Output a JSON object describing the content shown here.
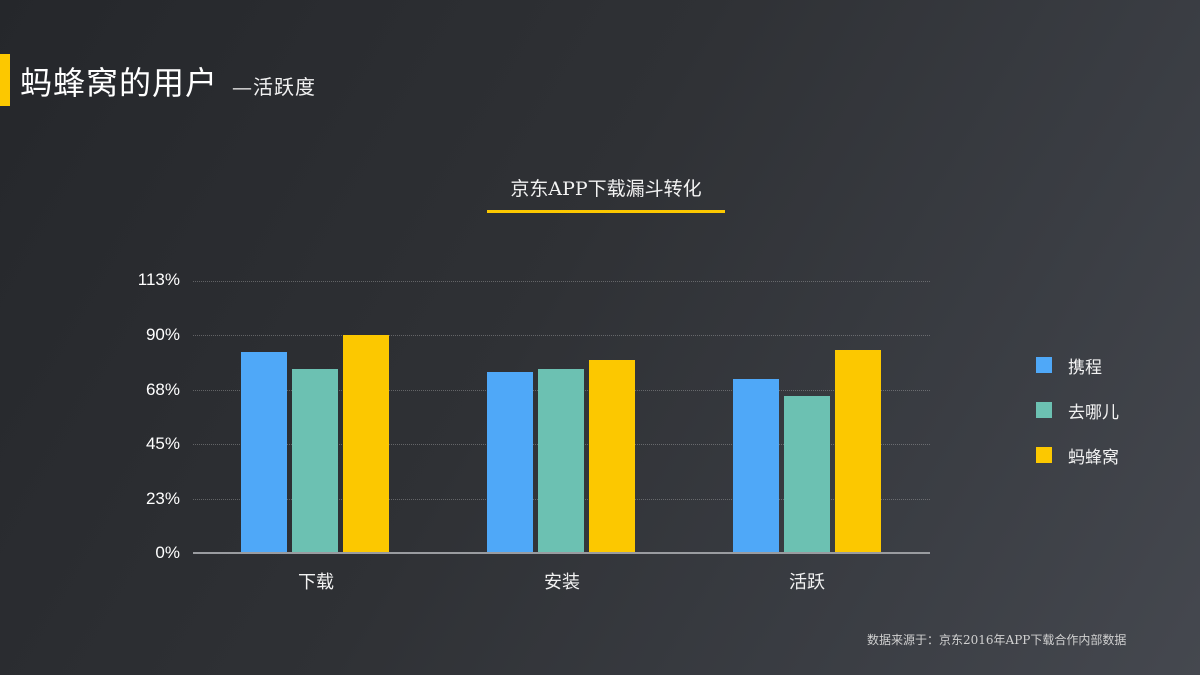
{
  "header": {
    "title": "蚂蜂窝的用户",
    "subtitle": "—活跃度",
    "accent_color": "#fcc800"
  },
  "chart_data": {
    "type": "bar",
    "title": "京东APP下载漏斗转化",
    "xlabel": "",
    "ylabel": "",
    "categories": [
      "下载",
      "安装",
      "活跃"
    ],
    "series": [
      {
        "name": "携程",
        "color": "#4fa8f8",
        "values": [
          83,
          75,
          72
        ]
      },
      {
        "name": "去哪儿",
        "color": "#6cc1b2",
        "values": [
          76,
          76,
          65
        ]
      },
      {
        "name": "蚂蜂窝",
        "color": "#fcc800",
        "values": [
          90,
          80,
          84
        ]
      }
    ],
    "yticks": [
      "0%",
      "23%",
      "45%",
      "68%",
      "90%",
      "113%"
    ],
    "ylim": [
      0,
      112.5
    ],
    "grid": true,
    "legend_position": "right"
  },
  "footer": {
    "source": "数据来源于：京东2016年APP下载合作内部数据"
  }
}
